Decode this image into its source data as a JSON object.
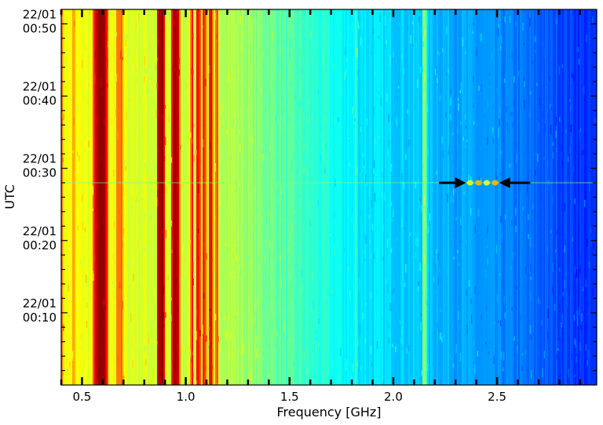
{
  "chart_data": {
    "type": "heatmap",
    "title": "",
    "xlabel": "Frequency [GHz]",
    "ylabel": "UTC",
    "xlim": [
      0.4,
      2.98
    ],
    "ylim_minutes": [
      0,
      52
    ],
    "x_ticks": [
      {
        "value": 0.5,
        "label": "0.5"
      },
      {
        "value": 1.0,
        "label": "1.0"
      },
      {
        "value": 1.5,
        "label": "1.5"
      },
      {
        "value": 2.0,
        "label": "2.0"
      },
      {
        "value": 2.5,
        "label": "2.5"
      }
    ],
    "x_minor_step": 0.1,
    "y_ticks": [
      {
        "minute": 10,
        "date": "22/01",
        "time": "00:10"
      },
      {
        "minute": 20,
        "date": "22/01",
        "time": "00:20"
      },
      {
        "minute": 30,
        "date": "22/01",
        "time": "00:30"
      },
      {
        "minute": 40,
        "date": "22/01",
        "time": "00:40"
      },
      {
        "minute": 50,
        "date": "22/01",
        "time": "00:50"
      }
    ],
    "y_minor_step_minutes": 2,
    "colormap": "jet",
    "intensity_trend": [
      {
        "freq": 0.4,
        "level": 0.62
      },
      {
        "freq": 1.2,
        "level": 0.56
      },
      {
        "freq": 1.5,
        "level": 0.45
      },
      {
        "freq": 1.8,
        "level": 0.36
      },
      {
        "freq": 2.2,
        "level": 0.31
      },
      {
        "freq": 2.6,
        "level": 0.24
      },
      {
        "freq": 2.98,
        "level": 0.16
      }
    ],
    "bright_lines": [
      {
        "freq": 0.405,
        "level": 0.78,
        "width": 0.006
      },
      {
        "freq": 0.46,
        "level": 0.7,
        "width": 0.008
      },
      {
        "freq": 0.59,
        "level": 0.97,
        "width": 0.035
      },
      {
        "freq": 0.68,
        "level": 0.76,
        "width": 0.025
      },
      {
        "freq": 0.88,
        "level": 0.97,
        "width": 0.022
      },
      {
        "freq": 0.95,
        "level": 0.95,
        "width": 0.022
      },
      {
        "freq": 1.03,
        "level": 0.85,
        "width": 0.008
      },
      {
        "freq": 1.06,
        "level": 0.88,
        "width": 0.012
      },
      {
        "freq": 1.09,
        "level": 0.84,
        "width": 0.012
      },
      {
        "freq": 1.12,
        "level": 0.87,
        "width": 0.012
      },
      {
        "freq": 1.15,
        "level": 0.78,
        "width": 0.008
      },
      {
        "freq": 1.82,
        "level": 0.46,
        "width": 0.008
      },
      {
        "freq": 2.15,
        "level": 0.52,
        "width": 0.012
      }
    ],
    "event": {
      "minute": 28,
      "freq_start": 2.37,
      "freq_end": 2.49,
      "level": 0.58
    },
    "annotations": [
      {
        "type": "arrow",
        "direction": "right",
        "minute": 28,
        "from_freq": 2.22,
        "to_freq": 2.35
      },
      {
        "type": "arrow",
        "direction": "left",
        "minute": 28,
        "from_freq": 2.66,
        "to_freq": 2.51
      }
    ]
  }
}
